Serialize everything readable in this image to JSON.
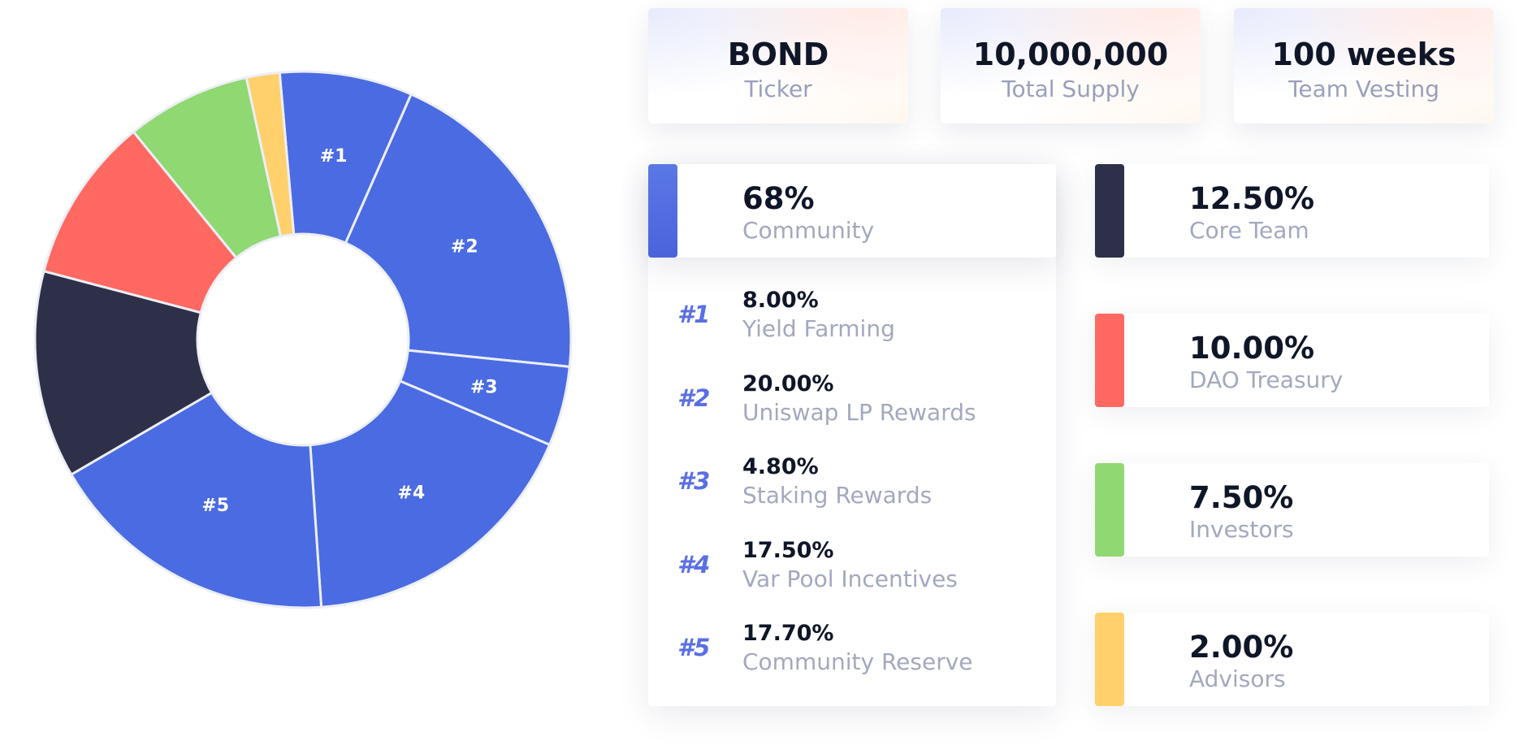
{
  "stats": [
    {
      "value": "BOND",
      "label": "Ticker"
    },
    {
      "value": "10,000,000",
      "label": "Total Supply"
    },
    {
      "value": "100 weeks",
      "label": "Team Vesting"
    }
  ],
  "community": {
    "percent": "68%",
    "label": "Community",
    "breakdown": [
      {
        "num": "#1",
        "percent": "8.00%",
        "label": "Yield Farming"
      },
      {
        "num": "#2",
        "percent": "20.00%",
        "label": "Uniswap LP Rewards"
      },
      {
        "num": "#3",
        "percent": "4.80%",
        "label": "Staking Rewards"
      },
      {
        "num": "#4",
        "percent": "17.50%",
        "label": "Var Pool Incentives"
      },
      {
        "num": "#5",
        "percent": "17.70%",
        "label": "Community Reserve"
      }
    ]
  },
  "others": [
    {
      "percent": "12.50%",
      "label": "Core Team"
    },
    {
      "percent": "10.00%",
      "label": "DAO Treasury"
    },
    {
      "percent": "7.50%",
      "label": "Investors"
    },
    {
      "percent": "2.00%",
      "label": "Advisors"
    }
  ],
  "colors": {
    "community": "#4a6be2",
    "core_team": "#2e2f48",
    "dao_treasury": "#ff6961",
    "investors": "#8fd872",
    "advisors": "#ffd06b",
    "separator": "#eceef6"
  },
  "chart_data": {
    "type": "pie",
    "title": "",
    "start_angle_deg": -5,
    "slices": [
      {
        "label": "#1",
        "category": "Yield Farming",
        "value": 8.0,
        "color": "#4a6be2"
      },
      {
        "label": "#2",
        "category": "Uniswap LP Rewards",
        "value": 20.0,
        "color": "#4a6be2"
      },
      {
        "label": "#3",
        "category": "Staking Rewards",
        "value": 4.8,
        "color": "#4a6be2"
      },
      {
        "label": "#4",
        "category": "Var Pool Incentives",
        "value": 17.5,
        "color": "#4a6be2"
      },
      {
        "label": "#5",
        "category": "Community Reserve",
        "value": 17.7,
        "color": "#4a6be2"
      },
      {
        "label": "",
        "category": "Core Team",
        "value": 12.5,
        "color": "#2e2f48"
      },
      {
        "label": "",
        "category": "DAO Treasury",
        "value": 10.0,
        "color": "#ff6961"
      },
      {
        "label": "",
        "category": "Investors",
        "value": 7.5,
        "color": "#8fd872"
      },
      {
        "label": "",
        "category": "Advisors",
        "value": 2.0,
        "color": "#ffd06b"
      }
    ]
  }
}
